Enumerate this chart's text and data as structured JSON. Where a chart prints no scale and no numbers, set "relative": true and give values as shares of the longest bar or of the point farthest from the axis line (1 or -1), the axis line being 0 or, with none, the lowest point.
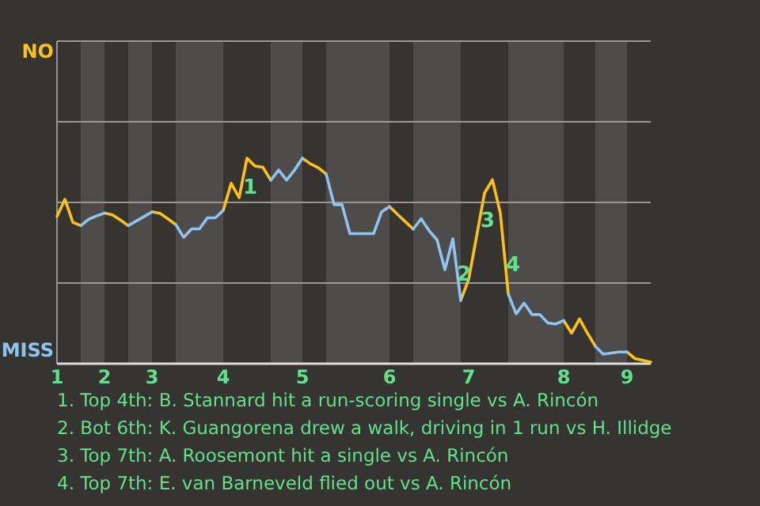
{
  "chart_data": {
    "type": "line",
    "relative": true,
    "marker": "none",
    "line_style": "solid",
    "ref_lines": [
      {
        "axis": "y",
        "value": 0.392,
        "color": "#9a9896"
      },
      {
        "axis": "y",
        "value": 0.785,
        "color": "#9a9896"
      },
      {
        "axis": "y",
        "value": 1.177,
        "color": "#9a9896"
      }
    ],
    "categories": [
      "1",
      null,
      null,
      null,
      null,
      null,
      "2",
      null,
      null,
      null,
      null,
      null,
      "3",
      null,
      null,
      null,
      null,
      null,
      null,
      null,
      null,
      "4",
      null,
      null,
      null,
      null,
      null,
      null,
      null,
      null,
      null,
      "5",
      null,
      null,
      null,
      null,
      null,
      null,
      null,
      null,
      null,
      null,
      "6",
      null,
      null,
      null,
      null,
      null,
      null,
      null,
      null,
      null,
      "7",
      null,
      null,
      null,
      null,
      null,
      null,
      null,
      null,
      null,
      null,
      null,
      "8",
      null,
      null,
      null,
      null,
      null,
      null,
      null,
      "9",
      null,
      null,
      null
    ],
    "series": [
      {
        "name": "NO",
        "color": "#ffc20e",
        "values": [
          0.717,
          0.8,
          0.688,
          0.672,
          null,
          null,
          0.733,
          0.724,
          0.699,
          0.672,
          null,
          null,
          0.739,
          0.732,
          0.705,
          0.677,
          null,
          null,
          null,
          null,
          null,
          0.746,
          0.878,
          0.808,
          1,
          0.962,
          0.956,
          0.893,
          null,
          null,
          null,
          1,
          0.973,
          0.954,
          0.923,
          null,
          null,
          null,
          null,
          null,
          null,
          null,
          0.765,
          0.727,
          0.691,
          0.655,
          null,
          null,
          null,
          null,
          null,
          0.308,
          0.41,
          0.62,
          0.83,
          0.895,
          0.732,
          0.339,
          null,
          null,
          null,
          null,
          null,
          null,
          0.21,
          0.149,
          0.218,
          0.149,
          0.085,
          null,
          null,
          null,
          0.057,
          0.025,
          0.016,
          0.008
        ]
      },
      {
        "name": "MISS",
        "color": "#8fc3f0",
        "values": [
          null,
          null,
          null,
          0.672,
          0.703,
          0.719,
          0.733,
          null,
          null,
          0.672,
          0.694,
          0.716,
          0.739,
          null,
          null,
          0.677,
          0.615,
          0.656,
          0.656,
          0.71,
          0.71,
          0.746,
          null,
          null,
          null,
          null,
          null,
          0.893,
          0.942,
          0.893,
          0.942,
          1,
          null,
          null,
          0.923,
          0.774,
          0.774,
          0.633,
          0.633,
          0.633,
          0.633,
          0.739,
          0.765,
          null,
          null,
          0.655,
          0.705,
          0.647,
          0.603,
          0.457,
          0.608,
          0.308,
          null,
          null,
          null,
          null,
          null,
          0.339,
          0.243,
          0.295,
          0.239,
          0.239,
          0.198,
          0.193,
          0.21,
          null,
          null,
          null,
          0.085,
          0.046,
          0.052,
          0.057,
          0.057,
          null,
          null,
          null
        ]
      }
    ],
    "annotations": [
      "1",
      "2",
      "3",
      "4",
      "1. Top 4th: B. Stannard hit a run-scoring single vs A. Rincón",
      "2. Bot 6th: K. Guangorena drew a walk, driving in 1 run vs H. Illidge",
      "3. Top 7th: A. Roosemont hit a single vs A. Rincón",
      "4. Top 7th: E. van Barneveld flied out vs A. Rincón"
    ]
  }
}
